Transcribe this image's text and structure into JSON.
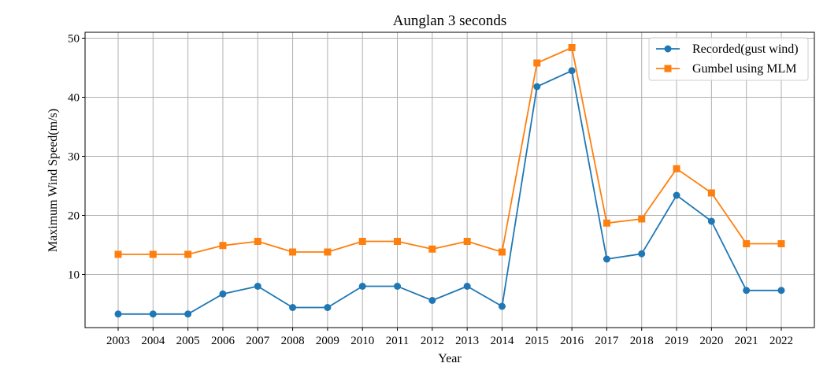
{
  "chart_data": {
    "type": "line",
    "title": "Aunglan 3 seconds",
    "xlabel": "Year",
    "ylabel": "Maximum Wind Speed(m/s)",
    "categories": [
      "2003",
      "2004",
      "2005",
      "2006",
      "2007",
      "2008",
      "2009",
      "2010",
      "2011",
      "2012",
      "2013",
      "2014",
      "2015",
      "2016",
      "2017",
      "2018",
      "2019",
      "2020",
      "2021",
      "2022"
    ],
    "ylim": [
      1,
      51
    ],
    "yticks": [
      10,
      20,
      30,
      40,
      50
    ],
    "grid": true,
    "legend_position": "top-right",
    "series": [
      {
        "name": "Recorded(gust wind)",
        "color": "#1f77b4",
        "marker": "circle",
        "values": [
          3.3,
          3.3,
          3.3,
          6.7,
          8.0,
          4.4,
          4.4,
          8.0,
          8.0,
          5.6,
          8.0,
          4.6,
          41.8,
          44.5,
          12.6,
          13.5,
          23.4,
          19.0,
          7.3,
          7.3
        ]
      },
      {
        "name": "Gumbel using MLM",
        "color": "#ff7f0e",
        "marker": "square",
        "values": [
          13.4,
          13.4,
          13.4,
          14.9,
          15.6,
          13.8,
          13.8,
          15.6,
          15.6,
          14.3,
          15.6,
          13.8,
          45.8,
          48.4,
          18.7,
          19.4,
          27.9,
          23.8,
          15.2,
          15.2
        ]
      }
    ]
  }
}
